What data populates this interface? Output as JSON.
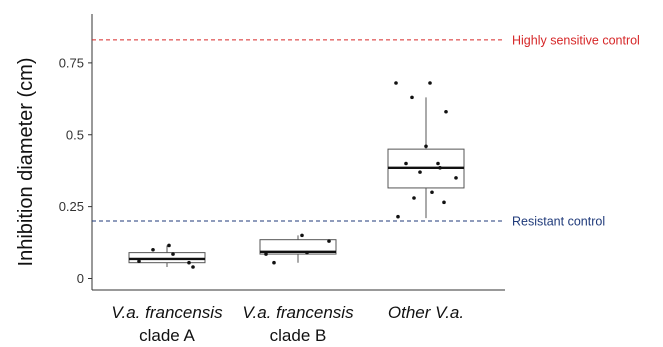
{
  "chart_data": {
    "type": "box",
    "ylabel": "Inhibition diameter (cm)",
    "xlabel": "",
    "ylim": [
      -0.04,
      0.92
    ],
    "yticks": [
      {
        "value": 0,
        "label": "0"
      },
      {
        "value": 0.25,
        "label": "0.25"
      },
      {
        "value": 0.5,
        "label": "0.5"
      },
      {
        "value": 0.75,
        "label": "0.75"
      }
    ],
    "categories": [
      {
        "label_line1": "V.a. francensis",
        "label_line1_italic": true,
        "label_line2": "clade A"
      },
      {
        "label_line1": "V.a. francensis",
        "label_line1_italic": true,
        "label_line2": "clade B"
      },
      {
        "label_line1": "Other V.a.",
        "label_line1_italic": true,
        "label_line2": ""
      }
    ],
    "boxes": [
      {
        "min": 0.04,
        "q1": 0.055,
        "median": 0.068,
        "q3": 0.09,
        "max": 0.115
      },
      {
        "min": 0.055,
        "q1": 0.085,
        "median": 0.093,
        "q3": 0.135,
        "max": 0.15
      },
      {
        "min": 0.21,
        "q1": 0.315,
        "median": 0.385,
        "q3": 0.45,
        "max": 0.63
      }
    ],
    "points": [
      [
        0.06,
        0.1,
        0.115,
        0.085,
        0.055,
        0.04
      ],
      [
        0.085,
        0.055,
        0.15,
        0.09,
        0.13
      ],
      [
        0.68,
        0.63,
        0.68,
        0.58,
        0.46,
        0.4,
        0.4,
        0.385,
        0.37,
        0.35,
        0.3,
        0.28,
        0.265,
        0.215
      ]
    ],
    "reference_lines": [
      {
        "label": "Highly sensitive control",
        "value": 0.83,
        "color": "#d62728"
      },
      {
        "label": "Resistant control",
        "value": 0.2,
        "color": "#1f3a7a"
      }
    ],
    "grid": false,
    "legend": "none"
  }
}
